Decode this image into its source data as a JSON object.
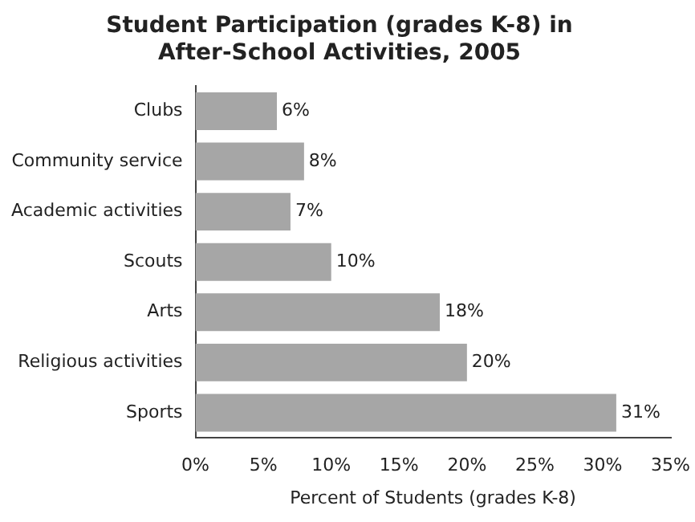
{
  "chart_data": {
    "type": "bar",
    "orientation": "horizontal",
    "title": "Student Participation (grades K-8) in\nAfter-School Activities, 2005",
    "xlabel": "Percent of Students (grades K-8)",
    "categories": [
      "Clubs",
      "Community service",
      "Academic activities",
      "Scouts",
      "Arts",
      "Religious activities",
      "Sports"
    ],
    "values": [
      6,
      8,
      7,
      10,
      18,
      20,
      31
    ],
    "value_labels": [
      "6%",
      "8%",
      "7%",
      "10%",
      "18%",
      "20%",
      "31%"
    ],
    "color": "#a6a6a6",
    "xlim": [
      0,
      35
    ],
    "xticks": [
      {
        "value": 0,
        "label": "0%"
      },
      {
        "value": 5,
        "label": "5%"
      },
      {
        "value": 10,
        "label": "10%"
      },
      {
        "value": 15,
        "label": "15%"
      },
      {
        "value": 20,
        "label": "20%"
      },
      {
        "value": 25,
        "label": "25%"
      },
      {
        "value": 30,
        "label": "30%"
      },
      {
        "value": 35,
        "label": "35%"
      }
    ],
    "grid": false,
    "legend": false
  }
}
